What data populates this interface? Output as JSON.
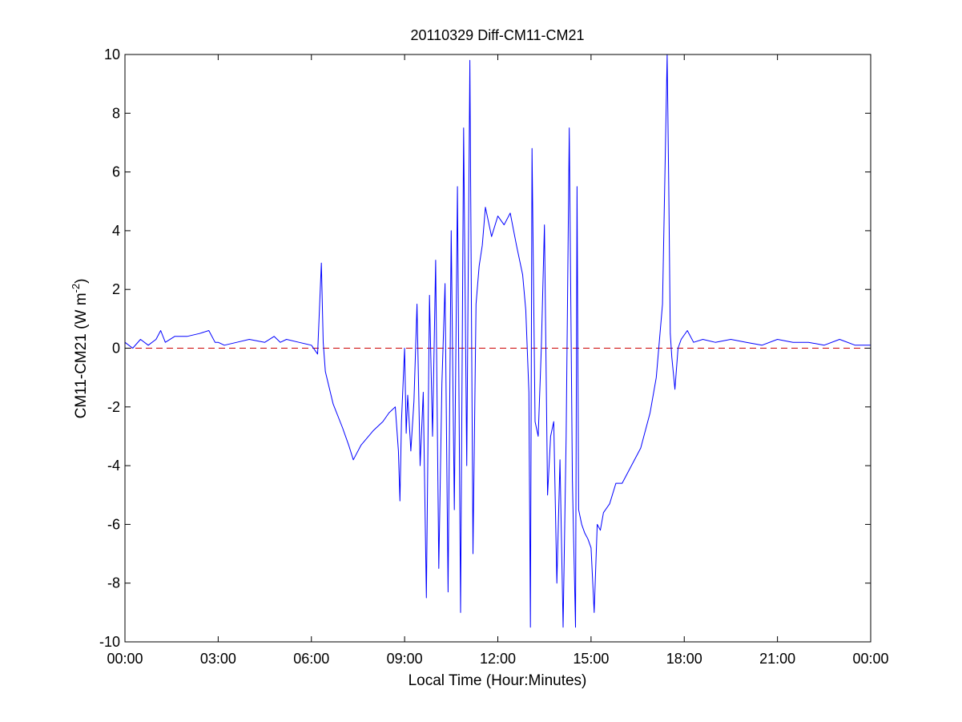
{
  "chart_data": {
    "type": "line",
    "title": "20110329 Diff-CM11-CM21",
    "xlabel": "Local Time (Hour:Minutes)",
    "ylabel": {
      "base": "CM11-CM21 (W m",
      "superscript": "-2",
      "suffix": ")"
    },
    "xlim": [
      0,
      24
    ],
    "ylim": [
      -10,
      10
    ],
    "x_ticks": [
      {
        "value": 0,
        "label": "00:00"
      },
      {
        "value": 3,
        "label": "03:00"
      },
      {
        "value": 6,
        "label": "06:00"
      },
      {
        "value": 9,
        "label": "09:00"
      },
      {
        "value": 12,
        "label": "12:00"
      },
      {
        "value": 15,
        "label": "15:00"
      },
      {
        "value": 18,
        "label": "18:00"
      },
      {
        "value": 21,
        "label": "21:00"
      },
      {
        "value": 24,
        "label": "00:00"
      }
    ],
    "y_ticks": [
      {
        "value": -10,
        "label": "-10"
      },
      {
        "value": -8,
        "label": "-8"
      },
      {
        "value": -6,
        "label": "-6"
      },
      {
        "value": -4,
        "label": "-4"
      },
      {
        "value": -2,
        "label": "-2"
      },
      {
        "value": 0,
        "label": "0"
      },
      {
        "value": 2,
        "label": "2"
      },
      {
        "value": 4,
        "label": "4"
      },
      {
        "value": 6,
        "label": "6"
      },
      {
        "value": 8,
        "label": "8"
      },
      {
        "value": 10,
        "label": "10"
      }
    ],
    "grid": false,
    "reference_line": {
      "y": 0,
      "color": "#cc0000",
      "style": "dashed"
    },
    "series": [
      {
        "color": "#0000ff",
        "x": [
          0,
          0.25,
          0.5,
          0.75,
          1.0,
          1.15,
          1.3,
          1.6,
          2.0,
          2.4,
          2.7,
          2.9,
          3.0,
          3.2,
          3.6,
          4.0,
          4.5,
          4.8,
          5.0,
          5.2,
          5.6,
          6.0,
          6.2,
          6.32,
          6.38,
          6.45,
          6.7,
          7.0,
          7.2,
          7.35,
          7.6,
          8.0,
          8.3,
          8.5,
          8.7,
          8.8,
          8.85,
          8.9,
          9.0,
          9.05,
          9.1,
          9.2,
          9.3,
          9.4,
          9.5,
          9.6,
          9.7,
          9.8,
          9.9,
          10.0,
          10.1,
          10.2,
          10.3,
          10.4,
          10.5,
          10.6,
          10.7,
          10.8,
          10.9,
          11.0,
          11.1,
          11.2,
          11.3,
          11.4,
          11.5,
          11.6,
          11.8,
          12.0,
          12.2,
          12.4,
          12.6,
          12.8,
          12.9,
          13.0,
          13.05,
          13.1,
          13.2,
          13.3,
          13.4,
          13.5,
          13.6,
          13.7,
          13.8,
          13.9,
          14.0,
          14.1,
          14.2,
          14.3,
          14.4,
          14.5,
          14.55,
          14.6,
          14.7,
          14.8,
          14.9,
          15.0,
          15.1,
          15.2,
          15.3,
          15.4,
          15.6,
          15.8,
          16.0,
          16.3,
          16.6,
          16.9,
          17.1,
          17.3,
          17.45,
          17.5,
          17.55,
          17.6,
          17.7,
          17.8,
          17.9,
          18.1,
          18.3,
          18.6,
          19.0,
          19.5,
          20.0,
          20.5,
          21.0,
          21.5,
          22.0,
          22.5,
          23.0,
          23.5,
          24.0
        ],
        "y": [
          0.2,
          0.0,
          0.3,
          0.1,
          0.3,
          0.6,
          0.2,
          0.4,
          0.4,
          0.5,
          0.6,
          0.2,
          0.2,
          0.1,
          0.2,
          0.3,
          0.2,
          0.4,
          0.2,
          0.3,
          0.2,
          0.1,
          -0.2,
          2.9,
          0.2,
          -0.8,
          -1.9,
          -2.7,
          -3.3,
          -3.8,
          -3.3,
          -2.8,
          -2.5,
          -2.2,
          -2.0,
          -3.5,
          -5.2,
          -2.5,
          0.0,
          -2.9,
          -1.6,
          -3.5,
          -1.8,
          1.5,
          -4.0,
          -1.5,
          -8.5,
          1.8,
          -3.0,
          3.0,
          -7.5,
          -1.2,
          2.2,
          -8.3,
          4.0,
          -5.5,
          5.5,
          -9.0,
          7.5,
          -4.0,
          9.8,
          -7.0,
          1.5,
          2.8,
          3.5,
          4.8,
          3.8,
          4.5,
          4.2,
          4.6,
          3.5,
          2.5,
          1.3,
          -1.5,
          -9.5,
          6.8,
          -2.5,
          -3.0,
          0.0,
          4.2,
          -5.0,
          -3.0,
          -2.5,
          -8.0,
          -3.8,
          -9.5,
          -3.0,
          7.5,
          -4.5,
          -9.5,
          5.5,
          -5.5,
          -6.0,
          -6.3,
          -6.5,
          -6.8,
          -9.0,
          -6.0,
          -6.2,
          -5.6,
          -5.3,
          -4.6,
          -4.6,
          -4.0,
          -3.4,
          -2.2,
          -1.0,
          1.5,
          10.0,
          5.5,
          0.5,
          -0.3,
          -1.4,
          0.0,
          0.3,
          0.6,
          0.2,
          0.3,
          0.2,
          0.3,
          0.2,
          0.1,
          0.3,
          0.2,
          0.2,
          0.1,
          0.3,
          0.1,
          0.1
        ]
      }
    ]
  }
}
